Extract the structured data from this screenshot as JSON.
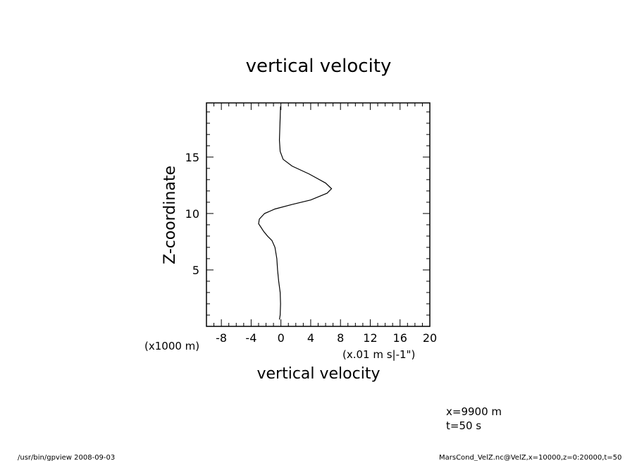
{
  "chart_data": {
    "type": "line",
    "title": "vertical velocity",
    "xlabel": "vertical velocity",
    "ylabel": "Z-coordinate",
    "x_unit": "(x.01 m s|-1\")",
    "y_unit": "(x1000 m)",
    "xlim": [
      -10,
      20
    ],
    "ylim": [
      0,
      19.8
    ],
    "x_ticks": [
      -8,
      -4,
      0,
      4,
      8,
      12,
      16,
      20
    ],
    "y_ticks": [
      5,
      10,
      15
    ],
    "x_tick_labels": [
      "-8",
      "-4",
      "0",
      "4",
      "8",
      "12",
      "16",
      "20"
    ],
    "y_tick_labels": [
      "5",
      "10",
      "15"
    ],
    "grid": false,
    "series": [
      {
        "x": [
          -0.2,
          -0.1,
          -0.05,
          -0.1,
          -0.3,
          -0.45,
          -0.55,
          -0.8,
          -1.2,
          -1.8,
          -2.3,
          -2.7,
          -3.0,
          -2.9,
          -2.2,
          -0.8,
          1.5,
          4.0,
          6.2,
          6.8,
          6.0,
          3.8,
          1.5,
          0.3,
          -0.1,
          -0.2,
          -0.15,
          -0.1,
          -0.05
        ],
        "y": [
          0.6,
          1.0,
          2.0,
          3.0,
          4.0,
          5.0,
          6.0,
          7.0,
          7.6,
          8.0,
          8.4,
          8.8,
          9.1,
          9.5,
          10.0,
          10.4,
          10.8,
          11.2,
          11.8,
          12.2,
          12.7,
          13.5,
          14.2,
          14.8,
          15.5,
          16.5,
          17.5,
          18.5,
          19.5
        ]
      }
    ]
  },
  "annotations": {
    "x_position": "x=9900  m",
    "t_value": "t=50  s"
  },
  "footer": {
    "left": "/usr/bin/gpview   2008-09-03",
    "right": "MarsCond_VelZ.nc@VelZ,x=10000,z=0:20000,t=50"
  }
}
